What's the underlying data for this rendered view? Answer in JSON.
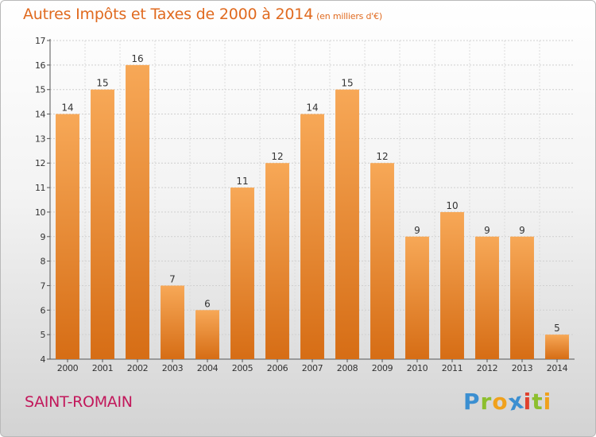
{
  "title": "Autres Impôts et Taxes de 2000 à 2014",
  "unit": "(en milliers d'€)",
  "commune": "SAINT-ROMAIN",
  "logo": {
    "text": "Proxiti",
    "letters": [
      {
        "ch": "P",
        "color": "#3b8fd1"
      },
      {
        "ch": "r",
        "color": "#8dbf2e"
      },
      {
        "ch": "o",
        "color": "#f0a11c"
      },
      {
        "ch": "x",
        "color": "#3b8fd1"
      },
      {
        "ch": "i",
        "color": "#e0412c"
      },
      {
        "ch": "t",
        "color": "#8dbf2e"
      },
      {
        "ch": "i",
        "color": "#f0a11c"
      }
    ]
  },
  "colors": {
    "bar_light": "#f7a857",
    "bar_dark": "#d66d15",
    "title": "#e06a1f",
    "commune": "#c2185b"
  },
  "chart_data": {
    "type": "bar",
    "title": "Autres Impôts et Taxes de 2000 à 2014",
    "subtitle": "(en milliers d'€)",
    "categories": [
      "2000",
      "2001",
      "2002",
      "2003",
      "2004",
      "2005",
      "2006",
      "2007",
      "2008",
      "2009",
      "2010",
      "2011",
      "2012",
      "2013",
      "2014"
    ],
    "values": [
      14,
      15,
      16,
      7,
      6,
      11,
      12,
      14,
      15,
      12,
      9,
      10,
      9,
      9,
      5
    ],
    "ylim": [
      4,
      17
    ],
    "yticks": [
      4,
      5,
      6,
      7,
      8,
      9,
      10,
      11,
      12,
      13,
      14,
      15,
      16,
      17
    ],
    "grid": true,
    "data_labels": true
  }
}
